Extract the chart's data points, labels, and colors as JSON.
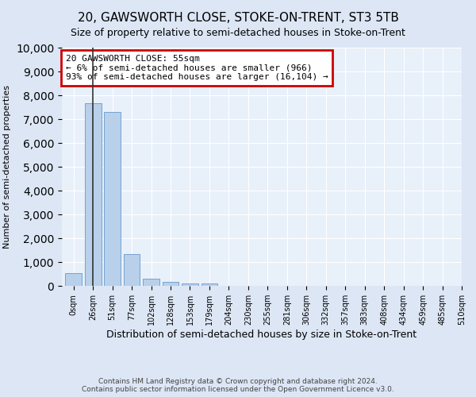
{
  "title": "20, GAWSWORTH CLOSE, STOKE-ON-TRENT, ST3 5TB",
  "subtitle": "Size of property relative to semi-detached houses in Stoke-on-Trent",
  "xlabel": "Distribution of semi-detached houses by size in Stoke-on-Trent",
  "ylabel": "Number of semi-detached properties",
  "bin_labels": [
    "0sqm",
    "26sqm",
    "51sqm",
    "77sqm",
    "102sqm",
    "128sqm",
    "153sqm",
    "179sqm",
    "204sqm",
    "230sqm",
    "255sqm",
    "281sqm",
    "306sqm",
    "332sqm",
    "357sqm",
    "383sqm",
    "408sqm",
    "434sqm",
    "459sqm",
    "485sqm",
    "510sqm"
  ],
  "bar_values": [
    550,
    7650,
    7300,
    1350,
    310,
    160,
    110,
    90,
    0,
    0,
    0,
    0,
    0,
    0,
    0,
    0,
    0,
    0,
    0,
    0
  ],
  "bar_color": "#b8d0ea",
  "bar_edge_color": "#6699cc",
  "property_bin_index": 1,
  "vline_color": "#333333",
  "annotation_text": "20 GAWSWORTH CLOSE: 55sqm\n← 6% of semi-detached houses are smaller (966)\n93% of semi-detached houses are larger (16,104) →",
  "annotation_box_color": "#ffffff",
  "annotation_box_edge_color": "#cc0000",
  "ylim": [
    0,
    10000
  ],
  "yticks": [
    0,
    1000,
    2000,
    3000,
    4000,
    5000,
    6000,
    7000,
    8000,
    9000,
    10000
  ],
  "footer_line1": "Contains HM Land Registry data © Crown copyright and database right 2024.",
  "footer_line2": "Contains public sector information licensed under the Open Government Licence v3.0.",
  "bg_color": "#dce6f5",
  "plot_bg_color": "#e8f0fa",
  "title_fontsize": 11,
  "subtitle_fontsize": 9
}
